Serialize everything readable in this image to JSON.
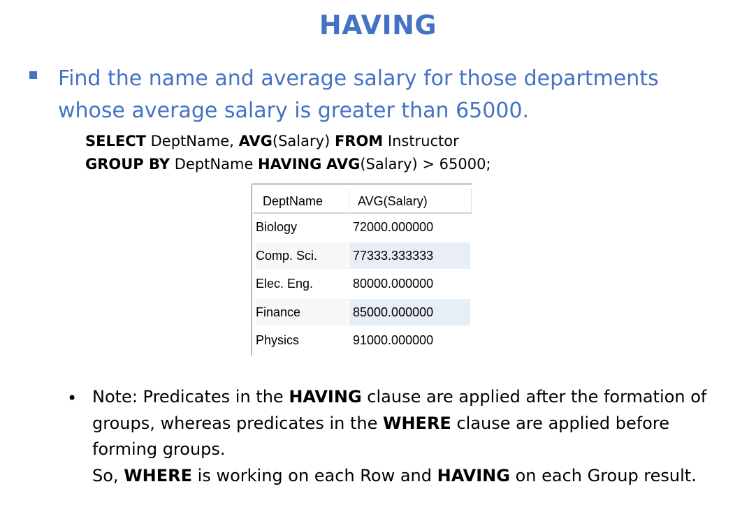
{
  "slide": {
    "title": "HAVING",
    "main_line1": "Find the name and average salary for those departments",
    "main_line2": "whose average salary is greater than 65000.",
    "sql": {
      "kw_select": "SELECT",
      "t_cols": " DeptName, ",
      "kw_avg1": "AVG",
      "t_salary1": "(Salary) ",
      "kw_from": "FROM",
      "t_table": " Instructor",
      "kw_groupby": "GROUP BY",
      "t_group": " DeptName ",
      "kw_having": "HAVING",
      "t_space": " ",
      "kw_avg2": "AVG",
      "t_cond": "(Salary) > 65000;"
    },
    "result": {
      "columns": [
        "DeptName",
        "AVG(Salary)"
      ],
      "rows": [
        [
          "Biology",
          "72000.000000"
        ],
        [
          "Comp. Sci.",
          "77333.333333"
        ],
        [
          "Elec. Eng.",
          "80000.000000"
        ],
        [
          "Finance",
          "85000.000000"
        ],
        [
          "Physics",
          "91000.000000"
        ]
      ]
    },
    "note": {
      "bullet": "•",
      "p1": "Note:  Predicates in the ",
      "b1": "HAVING",
      "p2": " clause are applied after the formation of groups, whereas predicates in the ",
      "b2": "WHERE",
      "p3": "  clause are applied before forming groups.",
      "p4": "So, ",
      "b3": "WHERE",
      "p5": " is working on each Row and ",
      "b4": "HAVING",
      "p6": " on each Group result."
    },
    "colors": {
      "accent": "#4472C4",
      "alt_row": "#e8eef6"
    }
  }
}
